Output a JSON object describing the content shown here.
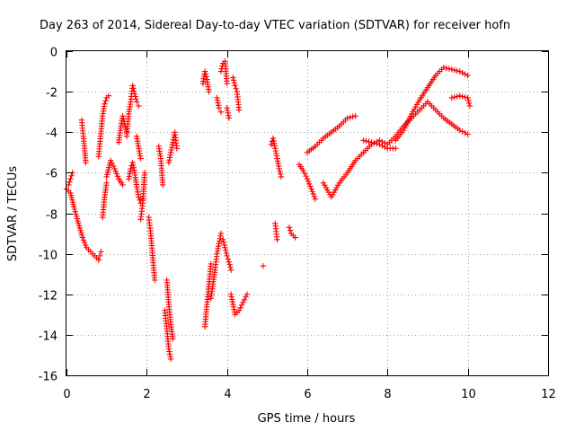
{
  "chart_data": {
    "type": "scatter",
    "title": "Day 263 of 2014, Sidereal Day-to-day VTEC variation (SDTVAR) for receiver hofn",
    "xlabel": "GPS time / hours",
    "ylabel": "SDTVAR / TECUs",
    "xlim": [
      0,
      12
    ],
    "ylim": [
      -16,
      0
    ],
    "xticks": [
      0,
      2,
      4,
      6,
      8,
      10,
      12
    ],
    "yticks": [
      -16,
      -14,
      -12,
      -10,
      -8,
      -6,
      -4,
      -2,
      0
    ],
    "xtick_labels": [
      "0",
      "2",
      "4",
      "6",
      "8",
      "10",
      "12"
    ],
    "ytick_labels": [
      "-16",
      "-14",
      "-12",
      "-10",
      "-8",
      "-6",
      "-4",
      "-2",
      "0"
    ],
    "grid": true,
    "marker": "+",
    "color": "#ff0000",
    "segments": [
      {
        "x": [
          0.0,
          0.1,
          0.2,
          0.3,
          0.4,
          0.5,
          0.6,
          0.7,
          0.8
        ],
        "y": [
          -6.8,
          -7.0,
          -7.8,
          -8.5,
          -9.2,
          -9.7,
          -9.9,
          -10.1,
          -10.3
        ]
      },
      {
        "x": [
          0.8,
          0.83,
          0.86
        ],
        "y": [
          -10.3,
          -10.1,
          -9.9
        ]
      },
      {
        "x": [
          0.05,
          0.1,
          0.15
        ],
        "y": [
          -6.6,
          -6.3,
          -6.0
        ]
      },
      {
        "x": [
          0.38,
          0.42,
          0.45,
          0.48
        ],
        "y": [
          -3.4,
          -4.2,
          -4.8,
          -5.5
        ]
      },
      {
        "x": [
          0.8,
          0.85,
          0.9,
          0.95,
          1.0,
          1.05
        ],
        "y": [
          -5.2,
          -4.2,
          -3.2,
          -2.6,
          -2.3,
          -2.2
        ]
      },
      {
        "x": [
          0.9,
          0.95,
          1.0
        ],
        "y": [
          -8.2,
          -7.2,
          -6.5
        ]
      },
      {
        "x": [
          1.0,
          1.1,
          1.2,
          1.3,
          1.4
        ],
        "y": [
          -6.2,
          -5.4,
          -5.8,
          -6.3,
          -6.6
        ]
      },
      {
        "x": [
          1.3,
          1.35,
          1.4,
          1.45,
          1.5
        ],
        "y": [
          -4.5,
          -3.8,
          -3.2,
          -3.6,
          -4.0
        ]
      },
      {
        "x": [
          1.5,
          1.55,
          1.6,
          1.65,
          1.7,
          1.75,
          1.8
        ],
        "y": [
          -4.2,
          -3.1,
          -2.5,
          -1.7,
          -2.1,
          -2.5,
          -2.7
        ]
      },
      {
        "x": [
          1.55,
          1.6,
          1.65,
          1.7,
          1.75,
          1.8,
          1.85,
          1.9
        ],
        "y": [
          -6.3,
          -5.8,
          -5.5,
          -6.0,
          -6.7,
          -7.2,
          -7.5,
          -7.3
        ]
      },
      {
        "x": [
          1.75,
          1.8,
          1.85
        ],
        "y": [
          -4.2,
          -4.8,
          -5.3
        ]
      },
      {
        "x": [
          1.85,
          1.9,
          1.95
        ],
        "y": [
          -8.3,
          -7.5,
          -6.0
        ]
      },
      {
        "x": [
          2.05,
          2.1,
          2.15,
          2.2
        ],
        "y": [
          -8.2,
          -9.0,
          -10.2,
          -11.3
        ]
      },
      {
        "x": [
          2.3,
          2.35,
          2.4
        ],
        "y": [
          -4.7,
          -5.3,
          -6.6
        ]
      },
      {
        "x": [
          2.45,
          2.5,
          2.55,
          2.6
        ],
        "y": [
          -12.8,
          -13.7,
          -14.7,
          -15.2
        ]
      },
      {
        "x": [
          2.5,
          2.55,
          2.6,
          2.65
        ],
        "y": [
          -11.3,
          -12.5,
          -13.5,
          -14.2
        ]
      },
      {
        "x": [
          2.55,
          2.6,
          2.65,
          2.7,
          2.75
        ],
        "y": [
          -5.5,
          -5.0,
          -4.5,
          -4.0,
          -4.8
        ]
      },
      {
        "x": [
          3.4,
          3.45,
          3.5,
          3.55
        ],
        "y": [
          -1.6,
          -1.0,
          -1.4,
          -2.0
        ]
      },
      {
        "x": [
          3.45,
          3.5,
          3.55,
          3.6
        ],
        "y": [
          -13.6,
          -12.5,
          -11.5,
          -10.5
        ]
      },
      {
        "x": [
          3.6,
          3.65,
          3.7,
          3.75,
          3.8,
          3.85
        ],
        "y": [
          -12.2,
          -11.5,
          -10.8,
          -10.0,
          -9.5,
          -9.0
        ]
      },
      {
        "x": [
          3.75,
          3.8,
          3.85
        ],
        "y": [
          -2.3,
          -2.8,
          -3.0
        ]
      },
      {
        "x": [
          3.85,
          3.9,
          3.95,
          4.0
        ],
        "y": [
          -1.0,
          -0.6,
          -0.5,
          -1.6
        ]
      },
      {
        "x": [
          3.9,
          3.95,
          4.0,
          4.05,
          4.1
        ],
        "y": [
          -9.3,
          -9.7,
          -10.1,
          -10.4,
          -10.8
        ]
      },
      {
        "x": [
          4.0,
          4.05
        ],
        "y": [
          -2.8,
          -3.3
        ]
      },
      {
        "x": [
          4.15,
          4.2,
          4.25,
          4.3
        ],
        "y": [
          -1.3,
          -1.7,
          -2.0,
          -2.9
        ]
      },
      {
        "x": [
          4.1,
          4.15,
          4.2,
          4.3,
          4.4,
          4.5
        ],
        "y": [
          -12.0,
          -12.5,
          -13.0,
          -12.8,
          -12.4,
          -12.0
        ]
      },
      {
        "x": [
          4.9
        ],
        "y": [
          -10.6
        ]
      },
      {
        "x": [
          5.2,
          5.25
        ],
        "y": [
          -8.5,
          -9.3
        ]
      },
      {
        "x": [
          5.1,
          5.15,
          5.2,
          5.25,
          5.3,
          5.35
        ],
        "y": [
          -4.6,
          -4.3,
          -4.8,
          -5.3,
          -5.8,
          -6.2
        ]
      },
      {
        "x": [
          5.55,
          5.6,
          5.65,
          5.7
        ],
        "y": [
          -8.7,
          -9.0,
          -9.1,
          -9.2
        ]
      },
      {
        "x": [
          5.8,
          5.9,
          6.0,
          6.1,
          6.2
        ],
        "y": [
          -5.6,
          -5.9,
          -6.3,
          -6.8,
          -7.3
        ]
      },
      {
        "x": [
          6.0,
          6.2,
          6.4,
          6.6,
          6.8,
          7.0,
          7.2
        ],
        "y": [
          -5.0,
          -4.7,
          -4.3,
          -4.0,
          -3.7,
          -3.3,
          -3.2
        ]
      },
      {
        "x": [
          6.4,
          6.6,
          6.8,
          7.0,
          7.2,
          7.4
        ],
        "y": [
          -6.5,
          -7.2,
          -6.5,
          -6.0,
          -5.4,
          -5.0
        ]
      },
      {
        "x": [
          7.4,
          7.6,
          7.8,
          8.0,
          8.2
        ],
        "y": [
          -4.4,
          -4.5,
          -4.6,
          -4.8,
          -4.8
        ]
      },
      {
        "x": [
          7.4,
          7.6,
          7.8,
          8.0,
          8.2,
          8.4,
          8.6,
          8.8,
          9.0
        ],
        "y": [
          -5.0,
          -4.6,
          -4.4,
          -4.6,
          -4.2,
          -3.7,
          -3.3,
          -2.9,
          -2.5
        ]
      },
      {
        "x": [
          8.2,
          8.4,
          8.6,
          8.8,
          9.0,
          9.2,
          9.4,
          9.6,
          9.8,
          10.0
        ],
        "y": [
          -4.4,
          -3.9,
          -3.1,
          -2.4,
          -1.8,
          -1.2,
          -0.8,
          -0.9,
          -1.0,
          -1.2
        ]
      },
      {
        "x": [
          9.0,
          9.2,
          9.4,
          9.6,
          9.8,
          10.0
        ],
        "y": [
          -2.5,
          -2.9,
          -3.3,
          -3.6,
          -3.9,
          -4.1
        ]
      },
      {
        "x": [
          9.6,
          9.8,
          10.0,
          10.05
        ],
        "y": [
          -2.3,
          -2.2,
          -2.3,
          -2.7
        ]
      }
    ]
  }
}
